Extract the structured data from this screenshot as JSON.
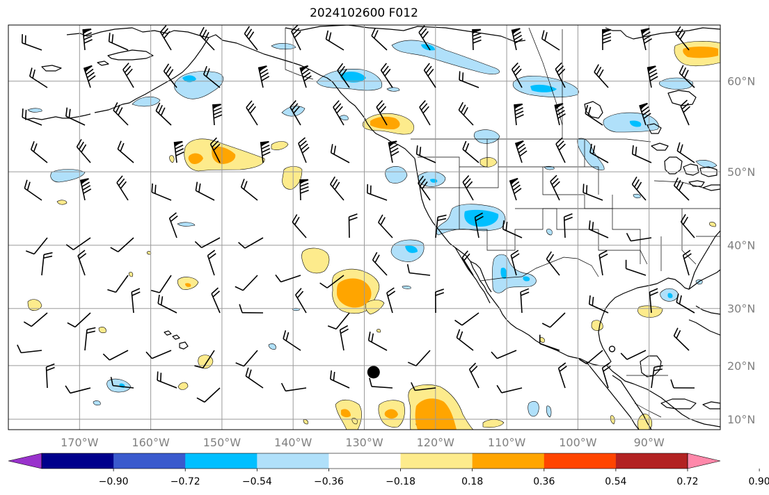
{
  "title": "2024102600 F012",
  "map": {
    "lon_range": [
      -180,
      -80
    ],
    "lat_range": [
      8,
      65
    ],
    "lat_labels": [
      "10°N",
      "20°N",
      "30°N",
      "40°N",
      "50°N",
      "60°N"
    ],
    "lat_values": [
      10,
      20,
      30,
      40,
      50,
      60
    ],
    "lon_labels": [
      "170°W",
      "160°W",
      "150°W",
      "140°W",
      "130°W",
      "120°W",
      "110°W",
      "100°W",
      "90°W"
    ],
    "lon_values": [
      -170,
      -160,
      -150,
      -140,
      -130,
      -120,
      -110,
      -100,
      -90
    ],
    "storm_marker": {
      "lon": -128.7,
      "lat": 18.8
    },
    "storm_marker_small": {
      "lon": -95.2,
      "lat": 23.0
    },
    "grid": "on"
  },
  "colorbar": {
    "ticks": [
      "−0.90",
      "−0.72",
      "−0.54",
      "−0.36",
      "−0.18",
      "0.18",
      "0.36",
      "0.54",
      "0.72",
      "0.90"
    ],
    "colors": [
      "#9932cc",
      "#00008b",
      "#3a5acd",
      "#00bfff",
      "#b0e0fa",
      "#ffffff",
      "#fdeb8c",
      "#ffa500",
      "#ff4500",
      "#b22222",
      "#ff88aa"
    ],
    "extend": "both"
  }
}
